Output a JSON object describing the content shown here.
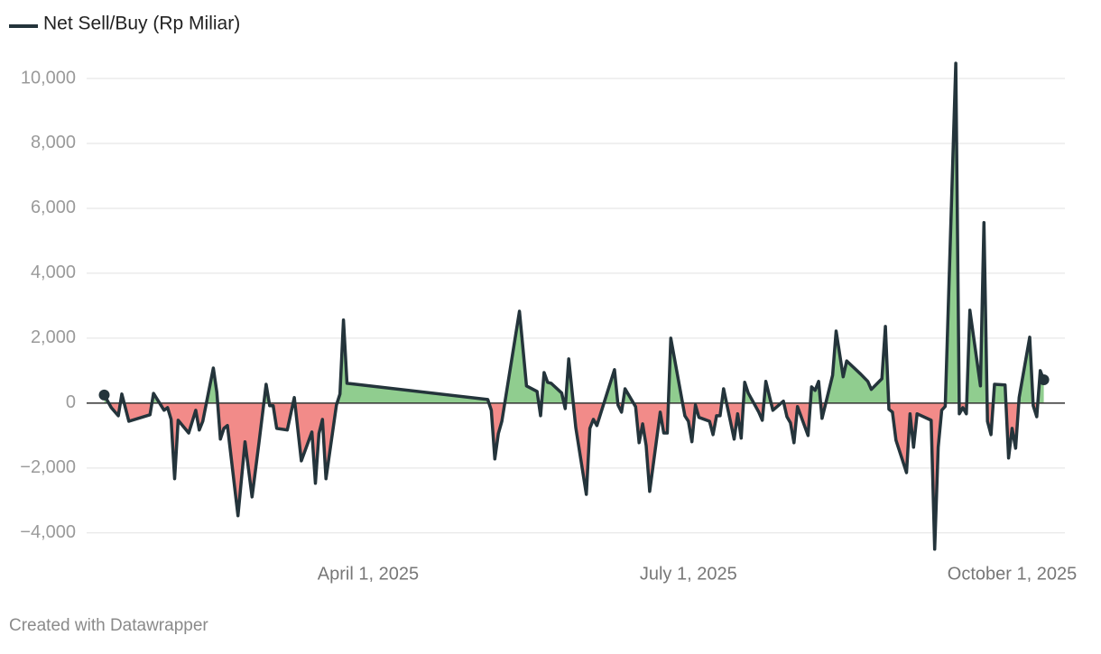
{
  "chart_data": {
    "type": "line",
    "series": [
      {
        "name": "Net Sell/Buy (Rp Miliar)",
        "color": "#24343b",
        "positive_color": "#90cd8f",
        "negative_color": "#f28b89",
        "values": [
          250,
          -140,
          -390,
          280,
          -560,
          -360,
          300,
          -220,
          -140,
          -500,
          -2330,
          -530,
          -920,
          -220,
          -830,
          -560,
          1080,
          330,
          -1110,
          -780,
          -690,
          -3470,
          -1190,
          -2890,
          -1190,
          580,
          -80,
          -80,
          -780,
          -830,
          170,
          -1780,
          -890,
          -2470,
          -940,
          -500,
          -2330,
          -60,
          280,
          2560,
          610,
          110,
          -220,
          -1720,
          -940,
          -560,
          2830,
          530,
          360,
          -390,
          940,
          640,
          610,
          310,
          -170,
          1360,
          310,
          -750,
          -2810,
          -780,
          -500,
          -690,
          1030,
          -60,
          -280,
          440,
          -110,
          -1220,
          -640,
          -1310,
          -2720,
          -280,
          -920,
          -920,
          2000,
          -390,
          -560,
          -1190,
          -60,
          -440,
          -560,
          -970,
          -390,
          -390,
          440,
          -1110,
          -330,
          -1080,
          640,
          310,
          -280,
          -530,
          670,
          -220,
          60,
          -420,
          -610,
          -1220,
          -110,
          -1000,
          500,
          390,
          670,
          -470,
          860,
          2220,
          810,
          1300,
          890,
          670,
          420,
          750,
          2360,
          -190,
          -280,
          -1140,
          -2140,
          -330,
          -1360,
          -330,
          -530,
          -4500,
          -1360,
          -220,
          -100,
          10470,
          -330,
          -140,
          -330,
          2860,
          530,
          5560,
          -560,
          -970,
          580,
          560,
          -1690,
          -780,
          -1390,
          170,
          2030,
          -80,
          -420,
          1000,
          720
        ]
      }
    ],
    "x": [
      "2025-01-16",
      "2025-01-18",
      "2025-01-20",
      "2025-01-21",
      "2025-01-23",
      "2025-01-29",
      "2025-01-30",
      "2025-02-02",
      "2025-02-03",
      "2025-02-04",
      "2025-02-05",
      "2025-02-06",
      "2025-02-09",
      "2025-02-11",
      "2025-02-12",
      "2025-02-13",
      "2025-02-16",
      "2025-02-17",
      "2025-02-18",
      "2025-02-19",
      "2025-02-20",
      "2025-02-23",
      "2025-02-25",
      "2025-02-27",
      "2025-03-01",
      "2025-03-03",
      "2025-03-04",
      "2025-03-05",
      "2025-03-06",
      "2025-03-09",
      "2025-03-11",
      "2025-03-13",
      "2025-03-16",
      "2025-03-17",
      "2025-03-18",
      "2025-03-19",
      "2025-03-20",
      "2025-03-23",
      "2025-03-24",
      "2025-03-25",
      "2025-03-26",
      "2025-05-05",
      "2025-05-06",
      "2025-05-07",
      "2025-05-08",
      "2025-05-09",
      "2025-05-14",
      "2025-05-16",
      "2025-05-19",
      "2025-05-20",
      "2025-05-21",
      "2025-05-22",
      "2025-05-23",
      "2025-05-26",
      "2025-05-27",
      "2025-05-28",
      "2025-05-29",
      "2025-05-30",
      "2025-06-02",
      "2025-06-03",
      "2025-06-04",
      "2025-06-05",
      "2025-06-10",
      "2025-06-11",
      "2025-06-12",
      "2025-06-13",
      "2025-06-16",
      "2025-06-17",
      "2025-06-18",
      "2025-06-19",
      "2025-06-20",
      "2025-06-23",
      "2025-06-24",
      "2025-06-25",
      "2025-06-26",
      "2025-06-30",
      "2025-07-01",
      "2025-07-02",
      "2025-07-03",
      "2025-07-04",
      "2025-07-07",
      "2025-07-08",
      "2025-07-09",
      "2025-07-10",
      "2025-07-11",
      "2025-07-14",
      "2025-07-15",
      "2025-07-16",
      "2025-07-17",
      "2025-07-18",
      "2025-07-21",
      "2025-07-22",
      "2025-07-23",
      "2025-07-25",
      "2025-07-28",
      "2025-07-29",
      "2025-07-30",
      "2025-07-31",
      "2025-08-01",
      "2025-08-04",
      "2025-08-05",
      "2025-08-06",
      "2025-08-07",
      "2025-08-08",
      "2025-08-11",
      "2025-08-12",
      "2025-08-14",
      "2025-08-15",
      "2025-08-19",
      "2025-08-21",
      "2025-08-22",
      "2025-08-25",
      "2025-08-26",
      "2025-08-27",
      "2025-08-28",
      "2025-08-29",
      "2025-09-01",
      "2025-09-02",
      "2025-09-03",
      "2025-09-04",
      "2025-09-08",
      "2025-09-09",
      "2025-09-10",
      "2025-09-11",
      "2025-09-12",
      "2025-09-15",
      "2025-09-16",
      "2025-09-17",
      "2025-09-18",
      "2025-09-19",
      "2025-09-22",
      "2025-09-23",
      "2025-09-24",
      "2025-09-25",
      "2025-09-26",
      "2025-09-29",
      "2025-09-30",
      "2025-10-01",
      "2025-10-02",
      "2025-10-03",
      "2025-10-06",
      "2025-10-07",
      "2025-10-08",
      "2025-10-09",
      "2025-10-10"
    ],
    "xlim": [
      "2025-01-11",
      "2025-10-16"
    ],
    "xticks": [
      {
        "value": "2025-04-01",
        "label": "April 1, 2025"
      },
      {
        "value": "2025-07-01",
        "label": "July 1, 2025"
      },
      {
        "value": "2025-10-01",
        "label": "October 1, 2025"
      }
    ],
    "ylim": [
      -4700,
      10600
    ],
    "yticks": [
      {
        "value": -4000,
        "label": "−4,000"
      },
      {
        "value": -2000,
        "label": "−2,000"
      },
      0,
      {
        "value": 2000,
        "label": "2,000"
      },
      {
        "value": 4000,
        "label": "4,000"
      },
      {
        "value": 6000,
        "label": "6,000"
      },
      {
        "value": 8000,
        "label": "8,000"
      },
      {
        "value": 10000,
        "label": "10,000"
      }
    ],
    "grid": true,
    "credit": "Created with Datawrapper"
  }
}
